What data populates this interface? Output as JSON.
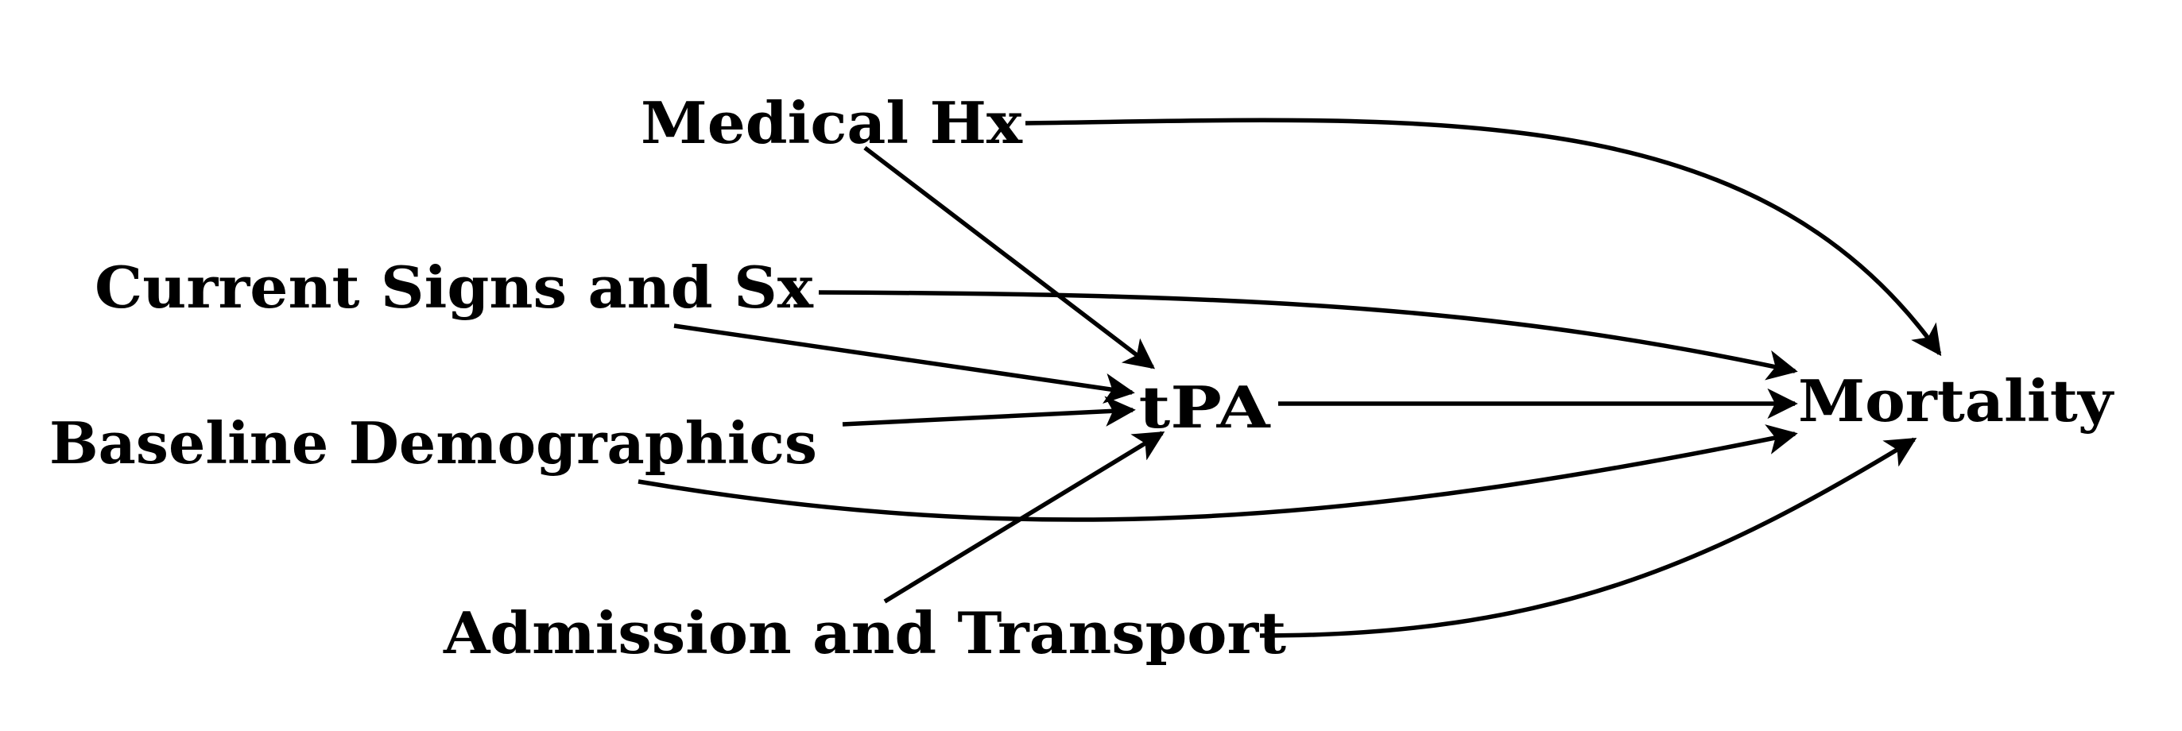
{
  "diagram": {
    "nodes": [
      {
        "id": "medical_hx",
        "label": "Medical Hx"
      },
      {
        "id": "current_signs",
        "label": "Current Signs and Sx"
      },
      {
        "id": "baseline_demo",
        "label": "Baseline Demographics"
      },
      {
        "id": "admission",
        "label": "Admission and Transport"
      },
      {
        "id": "tpa",
        "label": "tPA"
      },
      {
        "id": "mortality",
        "label": "Mortality"
      }
    ],
    "edges": [
      {
        "from": "medical_hx",
        "to": "tpa"
      },
      {
        "from": "medical_hx",
        "to": "mortality"
      },
      {
        "from": "current_signs",
        "to": "tpa"
      },
      {
        "from": "current_signs",
        "to": "mortality"
      },
      {
        "from": "baseline_demo",
        "to": "tpa"
      },
      {
        "from": "baseline_demo",
        "to": "mortality"
      },
      {
        "from": "admission",
        "to": "tpa"
      },
      {
        "from": "admission",
        "to": "mortality"
      },
      {
        "from": "tpa",
        "to": "mortality"
      }
    ]
  },
  "colors": {
    "stroke": "#000000",
    "text": "#000000",
    "background": "#ffffff"
  }
}
